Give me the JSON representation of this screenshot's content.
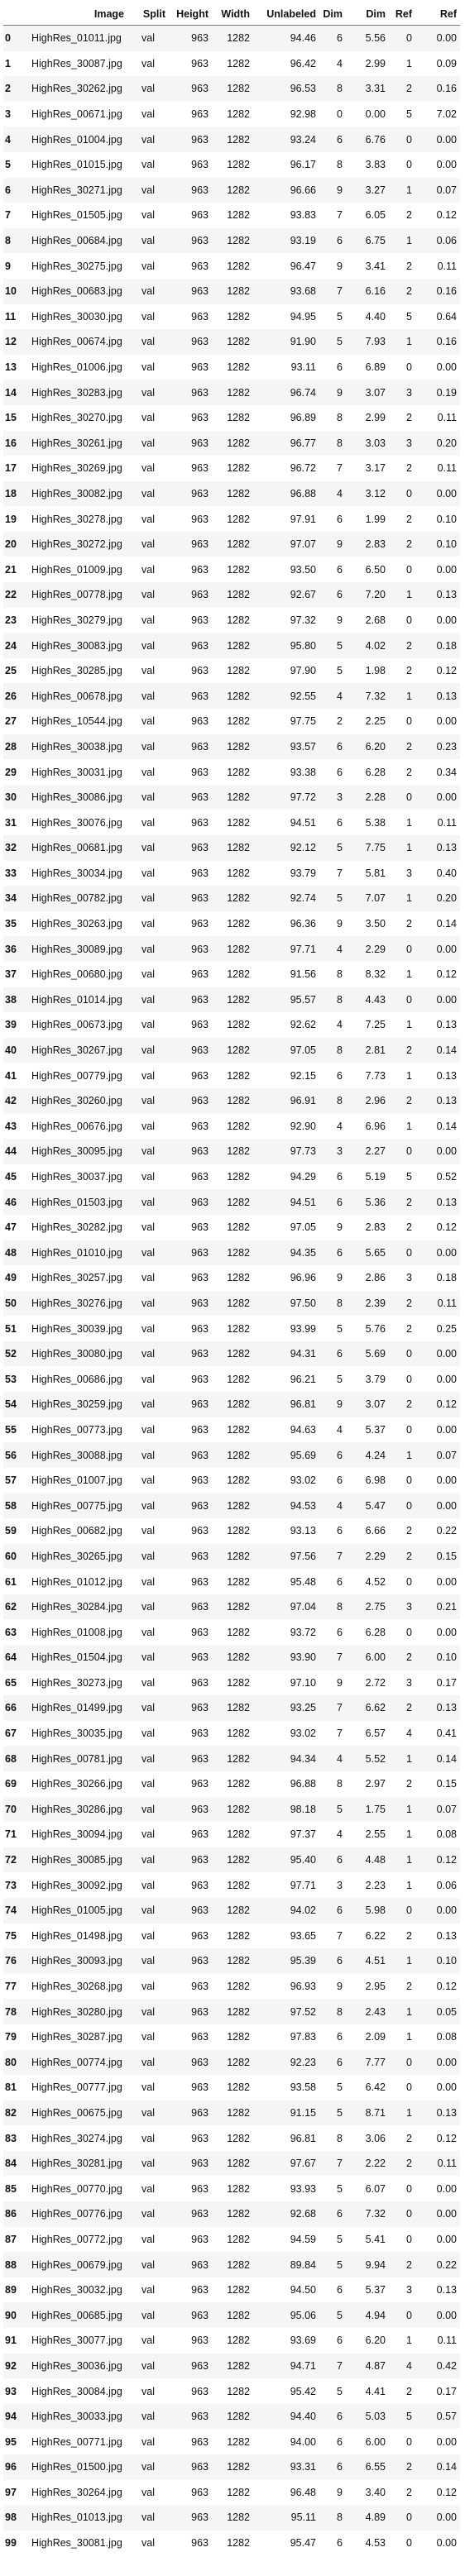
{
  "columns": [
    "",
    "Image",
    "Split",
    "Height",
    "Width",
    "Unlabeled",
    "Dim",
    "Dim",
    "Ref",
    "Ref"
  ],
  "rows": [
    [
      "0",
      "HighRes_01011.jpg",
      "val",
      "963",
      "1282",
      "94.46",
      "6",
      "5.56",
      "0",
      "0.00"
    ],
    [
      "1",
      "HighRes_30087.jpg",
      "val",
      "963",
      "1282",
      "96.42",
      "4",
      "2.99",
      "1",
      "0.09"
    ],
    [
      "2",
      "HighRes_30262.jpg",
      "val",
      "963",
      "1282",
      "96.53",
      "8",
      "3.31",
      "2",
      "0.16"
    ],
    [
      "3",
      "HighRes_00671.jpg",
      "val",
      "963",
      "1282",
      "92.98",
      "0",
      "0.00",
      "5",
      "7.02"
    ],
    [
      "4",
      "HighRes_01004.jpg",
      "val",
      "963",
      "1282",
      "93.24",
      "6",
      "6.76",
      "0",
      "0.00"
    ],
    [
      "5",
      "HighRes_01015.jpg",
      "val",
      "963",
      "1282",
      "96.17",
      "8",
      "3.83",
      "0",
      "0.00"
    ],
    [
      "6",
      "HighRes_30271.jpg",
      "val",
      "963",
      "1282",
      "96.66",
      "9",
      "3.27",
      "1",
      "0.07"
    ],
    [
      "7",
      "HighRes_01505.jpg",
      "val",
      "963",
      "1282",
      "93.83",
      "7",
      "6.05",
      "2",
      "0.12"
    ],
    [
      "8",
      "HighRes_00684.jpg",
      "val",
      "963",
      "1282",
      "93.19",
      "6",
      "6.75",
      "1",
      "0.06"
    ],
    [
      "9",
      "HighRes_30275.jpg",
      "val",
      "963",
      "1282",
      "96.47",
      "9",
      "3.41",
      "2",
      "0.11"
    ],
    [
      "10",
      "HighRes_00683.jpg",
      "val",
      "963",
      "1282",
      "93.68",
      "7",
      "6.16",
      "2",
      "0.16"
    ],
    [
      "11",
      "HighRes_30030.jpg",
      "val",
      "963",
      "1282",
      "94.95",
      "5",
      "4.40",
      "5",
      "0.64"
    ],
    [
      "12",
      "HighRes_00674.jpg",
      "val",
      "963",
      "1282",
      "91.90",
      "5",
      "7.93",
      "1",
      "0.16"
    ],
    [
      "13",
      "HighRes_01006.jpg",
      "val",
      "963",
      "1282",
      "93.11",
      "6",
      "6.89",
      "0",
      "0.00"
    ],
    [
      "14",
      "HighRes_30283.jpg",
      "val",
      "963",
      "1282",
      "96.74",
      "9",
      "3.07",
      "3",
      "0.19"
    ],
    [
      "15",
      "HighRes_30270.jpg",
      "val",
      "963",
      "1282",
      "96.89",
      "8",
      "2.99",
      "2",
      "0.11"
    ],
    [
      "16",
      "HighRes_30261.jpg",
      "val",
      "963",
      "1282",
      "96.77",
      "8",
      "3.03",
      "3",
      "0.20"
    ],
    [
      "17",
      "HighRes_30269.jpg",
      "val",
      "963",
      "1282",
      "96.72",
      "7",
      "3.17",
      "2",
      "0.11"
    ],
    [
      "18",
      "HighRes_30082.jpg",
      "val",
      "963",
      "1282",
      "96.88",
      "4",
      "3.12",
      "0",
      "0.00"
    ],
    [
      "19",
      "HighRes_30278.jpg",
      "val",
      "963",
      "1282",
      "97.91",
      "6",
      "1.99",
      "2",
      "0.10"
    ],
    [
      "20",
      "HighRes_30272.jpg",
      "val",
      "963",
      "1282",
      "97.07",
      "9",
      "2.83",
      "2",
      "0.10"
    ],
    [
      "21",
      "HighRes_01009.jpg",
      "val",
      "963",
      "1282",
      "93.50",
      "6",
      "6.50",
      "0",
      "0.00"
    ],
    [
      "22",
      "HighRes_00778.jpg",
      "val",
      "963",
      "1282",
      "92.67",
      "6",
      "7.20",
      "1",
      "0.13"
    ],
    [
      "23",
      "HighRes_30279.jpg",
      "val",
      "963",
      "1282",
      "97.32",
      "9",
      "2.68",
      "0",
      "0.00"
    ],
    [
      "24",
      "HighRes_30083.jpg",
      "val",
      "963",
      "1282",
      "95.80",
      "5",
      "4.02",
      "2",
      "0.18"
    ],
    [
      "25",
      "HighRes_30285.jpg",
      "val",
      "963",
      "1282",
      "97.90",
      "5",
      "1.98",
      "2",
      "0.12"
    ],
    [
      "26",
      "HighRes_00678.jpg",
      "val",
      "963",
      "1282",
      "92.55",
      "4",
      "7.32",
      "1",
      "0.13"
    ],
    [
      "27",
      "HighRes_10544.jpg",
      "val",
      "963",
      "1282",
      "97.75",
      "2",
      "2.25",
      "0",
      "0.00"
    ],
    [
      "28",
      "HighRes_30038.jpg",
      "val",
      "963",
      "1282",
      "93.57",
      "6",
      "6.20",
      "2",
      "0.23"
    ],
    [
      "29",
      "HighRes_30031.jpg",
      "val",
      "963",
      "1282",
      "93.38",
      "6",
      "6.28",
      "2",
      "0.34"
    ],
    [
      "30",
      "HighRes_30086.jpg",
      "val",
      "963",
      "1282",
      "97.72",
      "3",
      "2.28",
      "0",
      "0.00"
    ],
    [
      "31",
      "HighRes_30076.jpg",
      "val",
      "963",
      "1282",
      "94.51",
      "6",
      "5.38",
      "1",
      "0.11"
    ],
    [
      "32",
      "HighRes_00681.jpg",
      "val",
      "963",
      "1282",
      "92.12",
      "5",
      "7.75",
      "1",
      "0.13"
    ],
    [
      "33",
      "HighRes_30034.jpg",
      "val",
      "963",
      "1282",
      "93.79",
      "7",
      "5.81",
      "3",
      "0.40"
    ],
    [
      "34",
      "HighRes_00782.jpg",
      "val",
      "963",
      "1282",
      "92.74",
      "5",
      "7.07",
      "1",
      "0.20"
    ],
    [
      "35",
      "HighRes_30263.jpg",
      "val",
      "963",
      "1282",
      "96.36",
      "9",
      "3.50",
      "2",
      "0.14"
    ],
    [
      "36",
      "HighRes_30089.jpg",
      "val",
      "963",
      "1282",
      "97.71",
      "4",
      "2.29",
      "0",
      "0.00"
    ],
    [
      "37",
      "HighRes_00680.jpg",
      "val",
      "963",
      "1282",
      "91.56",
      "8",
      "8.32",
      "1",
      "0.12"
    ],
    [
      "38",
      "HighRes_01014.jpg",
      "val",
      "963",
      "1282",
      "95.57",
      "8",
      "4.43",
      "0",
      "0.00"
    ],
    [
      "39",
      "HighRes_00673.jpg",
      "val",
      "963",
      "1282",
      "92.62",
      "4",
      "7.25",
      "1",
      "0.13"
    ],
    [
      "40",
      "HighRes_30267.jpg",
      "val",
      "963",
      "1282",
      "97.05",
      "8",
      "2.81",
      "2",
      "0.14"
    ],
    [
      "41",
      "HighRes_00779.jpg",
      "val",
      "963",
      "1282",
      "92.15",
      "6",
      "7.73",
      "1",
      "0.13"
    ],
    [
      "42",
      "HighRes_30260.jpg",
      "val",
      "963",
      "1282",
      "96.91",
      "8",
      "2.96",
      "2",
      "0.13"
    ],
    [
      "43",
      "HighRes_00676.jpg",
      "val",
      "963",
      "1282",
      "92.90",
      "4",
      "6.96",
      "1",
      "0.14"
    ],
    [
      "44",
      "HighRes_30095.jpg",
      "val",
      "963",
      "1282",
      "97.73",
      "3",
      "2.27",
      "0",
      "0.00"
    ],
    [
      "45",
      "HighRes_30037.jpg",
      "val",
      "963",
      "1282",
      "94.29",
      "6",
      "5.19",
      "5",
      "0.52"
    ],
    [
      "46",
      "HighRes_01503.jpg",
      "val",
      "963",
      "1282",
      "94.51",
      "6",
      "5.36",
      "2",
      "0.13"
    ],
    [
      "47",
      "HighRes_30282.jpg",
      "val",
      "963",
      "1282",
      "97.05",
      "9",
      "2.83",
      "2",
      "0.12"
    ],
    [
      "48",
      "HighRes_01010.jpg",
      "val",
      "963",
      "1282",
      "94.35",
      "6",
      "5.65",
      "0",
      "0.00"
    ],
    [
      "49",
      "HighRes_30257.jpg",
      "val",
      "963",
      "1282",
      "96.96",
      "9",
      "2.86",
      "3",
      "0.18"
    ],
    [
      "50",
      "HighRes_30276.jpg",
      "val",
      "963",
      "1282",
      "97.50",
      "8",
      "2.39",
      "2",
      "0.11"
    ],
    [
      "51",
      "HighRes_30039.jpg",
      "val",
      "963",
      "1282",
      "93.99",
      "5",
      "5.76",
      "2",
      "0.25"
    ],
    [
      "52",
      "HighRes_30080.jpg",
      "val",
      "963",
      "1282",
      "94.31",
      "6",
      "5.69",
      "0",
      "0.00"
    ],
    [
      "53",
      "HighRes_00686.jpg",
      "val",
      "963",
      "1282",
      "96.21",
      "5",
      "3.79",
      "0",
      "0.00"
    ],
    [
      "54",
      "HighRes_30259.jpg",
      "val",
      "963",
      "1282",
      "96.81",
      "9",
      "3.07",
      "2",
      "0.12"
    ],
    [
      "55",
      "HighRes_00773.jpg",
      "val",
      "963",
      "1282",
      "94.63",
      "4",
      "5.37",
      "0",
      "0.00"
    ],
    [
      "56",
      "HighRes_30088.jpg",
      "val",
      "963",
      "1282",
      "95.69",
      "6",
      "4.24",
      "1",
      "0.07"
    ],
    [
      "57",
      "HighRes_01007.jpg",
      "val",
      "963",
      "1282",
      "93.02",
      "6",
      "6.98",
      "0",
      "0.00"
    ],
    [
      "58",
      "HighRes_00775.jpg",
      "val",
      "963",
      "1282",
      "94.53",
      "4",
      "5.47",
      "0",
      "0.00"
    ],
    [
      "59",
      "HighRes_00682.jpg",
      "val",
      "963",
      "1282",
      "93.13",
      "6",
      "6.66",
      "2",
      "0.22"
    ],
    [
      "60",
      "HighRes_30265.jpg",
      "val",
      "963",
      "1282",
      "97.56",
      "7",
      "2.29",
      "2",
      "0.15"
    ],
    [
      "61",
      "HighRes_01012.jpg",
      "val",
      "963",
      "1282",
      "95.48",
      "6",
      "4.52",
      "0",
      "0.00"
    ],
    [
      "62",
      "HighRes_30284.jpg",
      "val",
      "963",
      "1282",
      "97.04",
      "8",
      "2.75",
      "3",
      "0.21"
    ],
    [
      "63",
      "HighRes_01008.jpg",
      "val",
      "963",
      "1282",
      "93.72",
      "6",
      "6.28",
      "0",
      "0.00"
    ],
    [
      "64",
      "HighRes_01504.jpg",
      "val",
      "963",
      "1282",
      "93.90",
      "7",
      "6.00",
      "2",
      "0.10"
    ],
    [
      "65",
      "HighRes_30273.jpg",
      "val",
      "963",
      "1282",
      "97.10",
      "9",
      "2.72",
      "3",
      "0.17"
    ],
    [
      "66",
      "HighRes_01499.jpg",
      "val",
      "963",
      "1282",
      "93.25",
      "7",
      "6.62",
      "2",
      "0.13"
    ],
    [
      "67",
      "HighRes_30035.jpg",
      "val",
      "963",
      "1282",
      "93.02",
      "7",
      "6.57",
      "4",
      "0.41"
    ],
    [
      "68",
      "HighRes_00781.jpg",
      "val",
      "963",
      "1282",
      "94.34",
      "4",
      "5.52",
      "1",
      "0.14"
    ],
    [
      "69",
      "HighRes_30266.jpg",
      "val",
      "963",
      "1282",
      "96.88",
      "8",
      "2.97",
      "2",
      "0.15"
    ],
    [
      "70",
      "HighRes_30286.jpg",
      "val",
      "963",
      "1282",
      "98.18",
      "5",
      "1.75",
      "1",
      "0.07"
    ],
    [
      "71",
      "HighRes_30094.jpg",
      "val",
      "963",
      "1282",
      "97.37",
      "4",
      "2.55",
      "1",
      "0.08"
    ],
    [
      "72",
      "HighRes_30085.jpg",
      "val",
      "963",
      "1282",
      "95.40",
      "6",
      "4.48",
      "1",
      "0.12"
    ],
    [
      "73",
      "HighRes_30092.jpg",
      "val",
      "963",
      "1282",
      "97.71",
      "3",
      "2.23",
      "1",
      "0.06"
    ],
    [
      "74",
      "HighRes_01005.jpg",
      "val",
      "963",
      "1282",
      "94.02",
      "6",
      "5.98",
      "0",
      "0.00"
    ],
    [
      "75",
      "HighRes_01498.jpg",
      "val",
      "963",
      "1282",
      "93.65",
      "7",
      "6.22",
      "2",
      "0.13"
    ],
    [
      "76",
      "HighRes_30093.jpg",
      "val",
      "963",
      "1282",
      "95.39",
      "6",
      "4.51",
      "1",
      "0.10"
    ],
    [
      "77",
      "HighRes_30268.jpg",
      "val",
      "963",
      "1282",
      "96.93",
      "9",
      "2.95",
      "2",
      "0.12"
    ],
    [
      "78",
      "HighRes_30280.jpg",
      "val",
      "963",
      "1282",
      "97.52",
      "8",
      "2.43",
      "1",
      "0.05"
    ],
    [
      "79",
      "HighRes_30287.jpg",
      "val",
      "963",
      "1282",
      "97.83",
      "6",
      "2.09",
      "1",
      "0.08"
    ],
    [
      "80",
      "HighRes_00774.jpg",
      "val",
      "963",
      "1282",
      "92.23",
      "6",
      "7.77",
      "0",
      "0.00"
    ],
    [
      "81",
      "HighRes_00777.jpg",
      "val",
      "963",
      "1282",
      "93.58",
      "5",
      "6.42",
      "0",
      "0.00"
    ],
    [
      "82",
      "HighRes_00675.jpg",
      "val",
      "963",
      "1282",
      "91.15",
      "5",
      "8.71",
      "1",
      "0.13"
    ],
    [
      "83",
      "HighRes_30274.jpg",
      "val",
      "963",
      "1282",
      "96.81",
      "8",
      "3.06",
      "2",
      "0.12"
    ],
    [
      "84",
      "HighRes_30281.jpg",
      "val",
      "963",
      "1282",
      "97.67",
      "7",
      "2.22",
      "2",
      "0.11"
    ],
    [
      "85",
      "HighRes_00770.jpg",
      "val",
      "963",
      "1282",
      "93.93",
      "5",
      "6.07",
      "0",
      "0.00"
    ],
    [
      "86",
      "HighRes_00776.jpg",
      "val",
      "963",
      "1282",
      "92.68",
      "6",
      "7.32",
      "0",
      "0.00"
    ],
    [
      "87",
      "HighRes_00772.jpg",
      "val",
      "963",
      "1282",
      "94.59",
      "5",
      "5.41",
      "0",
      "0.00"
    ],
    [
      "88",
      "HighRes_00679.jpg",
      "val",
      "963",
      "1282",
      "89.84",
      "5",
      "9.94",
      "2",
      "0.22"
    ],
    [
      "89",
      "HighRes_30032.jpg",
      "val",
      "963",
      "1282",
      "94.50",
      "6",
      "5.37",
      "3",
      "0.13"
    ],
    [
      "90",
      "HighRes_00685.jpg",
      "val",
      "963",
      "1282",
      "95.06",
      "5",
      "4.94",
      "0",
      "0.00"
    ],
    [
      "91",
      "HighRes_30077.jpg",
      "val",
      "963",
      "1282",
      "93.69",
      "6",
      "6.20",
      "1",
      "0.11"
    ],
    [
      "92",
      "HighRes_30036.jpg",
      "val",
      "963",
      "1282",
      "94.71",
      "7",
      "4.87",
      "4",
      "0.42"
    ],
    [
      "93",
      "HighRes_30084.jpg",
      "val",
      "963",
      "1282",
      "95.42",
      "5",
      "4.41",
      "2",
      "0.17"
    ],
    [
      "94",
      "HighRes_30033.jpg",
      "val",
      "963",
      "1282",
      "94.40",
      "6",
      "5.03",
      "5",
      "0.57"
    ],
    [
      "95",
      "HighRes_00771.jpg",
      "val",
      "963",
      "1282",
      "94.00",
      "6",
      "6.00",
      "0",
      "0.00"
    ],
    [
      "96",
      "HighRes_01500.jpg",
      "val",
      "963",
      "1282",
      "93.31",
      "6",
      "6.55",
      "2",
      "0.14"
    ],
    [
      "97",
      "HighRes_30264.jpg",
      "val",
      "963",
      "1282",
      "96.48",
      "9",
      "3.40",
      "2",
      "0.12"
    ],
    [
      "98",
      "HighRes_01013.jpg",
      "val",
      "963",
      "1282",
      "95.11",
      "8",
      "4.89",
      "0",
      "0.00"
    ],
    [
      "99",
      "HighRes_30081.jpg",
      "val",
      "963",
      "1282",
      "95.47",
      "6",
      "4.53",
      "0",
      "0.00"
    ]
  ]
}
